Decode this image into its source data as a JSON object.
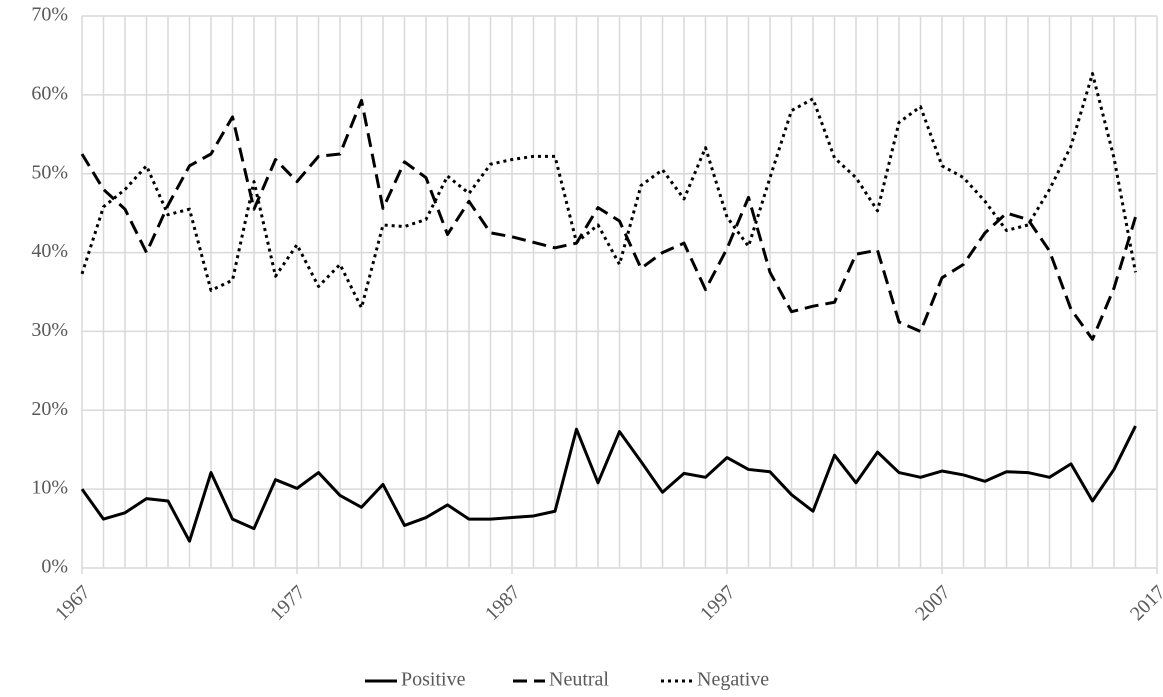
{
  "chart_data": {
    "type": "line",
    "x": [
      1967,
      1968,
      1969,
      1970,
      1971,
      1972,
      1973,
      1974,
      1975,
      1976,
      1977,
      1978,
      1979,
      1980,
      1981,
      1982,
      1983,
      1984,
      1985,
      1986,
      1987,
      1988,
      1989,
      1990,
      1991,
      1992,
      1993,
      1994,
      1995,
      1996,
      1997,
      1998,
      1999,
      2000,
      2001,
      2002,
      2003,
      2004,
      2005,
      2006,
      2007,
      2008,
      2009,
      2010,
      2011,
      2012,
      2013,
      2014,
      2015,
      2016
    ],
    "series": [
      {
        "name": "Positive",
        "color": "#000000",
        "dash": "solid",
        "values": [
          10.0,
          6.2,
          7.0,
          8.8,
          8.5,
          3.4,
          12.1,
          6.2,
          5.0,
          11.2,
          10.1,
          12.1,
          9.2,
          7.7,
          10.6,
          5.4,
          6.4,
          8.0,
          6.2,
          6.2,
          6.4,
          6.6,
          7.2,
          17.6,
          10.8,
          17.3,
          13.5,
          9.6,
          12.0,
          11.5,
          14.0,
          12.5,
          12.2,
          9.3,
          7.2,
          14.3,
          10.8,
          14.7,
          12.1,
          11.5,
          12.3,
          11.8,
          11.0,
          12.2,
          12.1,
          11.5,
          13.2,
          8.5,
          12.5,
          18.0
        ]
      },
      {
        "name": "Neutral",
        "color": "#000000",
        "dash": "dashed",
        "values": [
          52.5,
          48.0,
          45.5,
          40.0,
          46.0,
          51.0,
          52.5,
          57.2,
          45.5,
          51.8,
          49.0,
          52.2,
          52.5,
          59.3,
          45.6,
          51.5,
          49.5,
          42.3,
          46.5,
          42.5,
          42.0,
          41.3,
          40.6,
          41.2,
          45.7,
          44.0,
          38.0,
          40.0,
          41.2,
          35.3,
          40.5,
          47.0,
          37.5,
          32.5,
          33.2,
          33.7,
          39.8,
          40.3,
          31.2,
          30.0,
          36.8,
          38.5,
          42.5,
          45.0,
          44.2,
          40.2,
          32.8,
          29.0,
          35.5,
          44.5
        ]
      },
      {
        "name": "Negative",
        "color": "#000000",
        "dash": "dotted",
        "values": [
          37.3,
          45.8,
          48.0,
          51.0,
          44.8,
          45.5,
          35.2,
          36.5,
          49.0,
          37.0,
          41.0,
          35.7,
          38.5,
          33.0,
          43.5,
          43.3,
          44.2,
          49.7,
          47.5,
          51.2,
          51.8,
          52.2,
          52.2,
          41.3,
          43.5,
          38.5,
          48.5,
          50.5,
          46.8,
          53.3,
          44.5,
          40.8,
          49.5,
          58.0,
          59.5,
          52.0,
          49.5,
          45.3,
          56.5,
          58.5,
          51.0,
          49.5,
          46.5,
          42.8,
          43.5,
          48.0,
          53.5,
          62.7,
          52.0,
          37.5
        ]
      }
    ],
    "xlim": [
      1967,
      2017
    ],
    "xticks": [
      1967,
      1977,
      1987,
      1997,
      2007,
      2017
    ],
    "ylim": [
      0,
      70
    ],
    "yticks": [
      {
        "value": 0,
        "label": "0%"
      },
      {
        "value": 10,
        "label": "10%"
      },
      {
        "value": 20,
        "label": "20%"
      },
      {
        "value": 30,
        "label": "30%"
      },
      {
        "value": 40,
        "label": "40%"
      },
      {
        "value": 50,
        "label": "50%"
      },
      {
        "value": 60,
        "label": "60%"
      },
      {
        "value": 70,
        "label": "70%"
      }
    ],
    "grid": true,
    "legend": "bottom"
  }
}
